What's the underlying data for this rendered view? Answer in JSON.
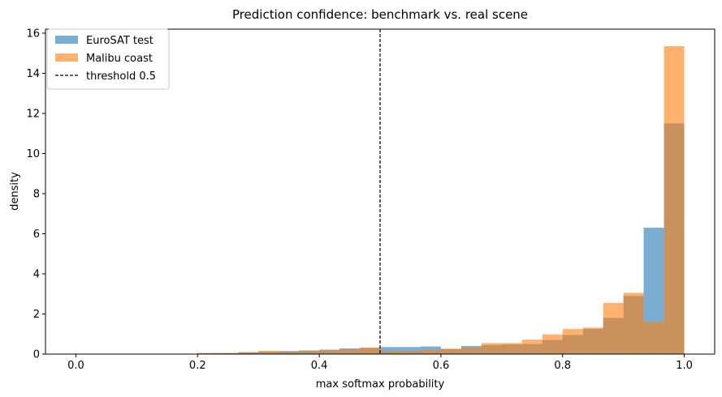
{
  "chart_data": {
    "type": "bar",
    "histogram": true,
    "title": "Prediction confidence: benchmark vs. real scene",
    "xlabel": "max softmax probability",
    "ylabel": "density",
    "xlim": [
      -0.05,
      1.05
    ],
    "ylim": [
      0,
      16.2
    ],
    "xticks": [
      0.0,
      0.2,
      0.4,
      0.6,
      0.8,
      1.0
    ],
    "xtick_labels": [
      "0.0",
      "0.2",
      "0.4",
      "0.6",
      "0.8",
      "1.0"
    ],
    "yticks": [
      0,
      2,
      4,
      6,
      8,
      10,
      12,
      14,
      16
    ],
    "ytick_labels": [
      "0",
      "2",
      "4",
      "6",
      "8",
      "10",
      "12",
      "14",
      "16"
    ],
    "bin_edges": [
      0.2,
      0.2333,
      0.2667,
      0.3,
      0.3333,
      0.3667,
      0.4,
      0.4333,
      0.4667,
      0.5,
      0.5333,
      0.5667,
      0.6,
      0.6333,
      0.6667,
      0.7,
      0.7333,
      0.7667,
      0.8,
      0.8333,
      0.8667,
      0.9,
      0.9333,
      0.9667,
      1.0
    ],
    "series": [
      {
        "name": "EuroSAT test",
        "color": "#1f77b4",
        "alpha": 0.6,
        "values": [
          0.03,
          0.04,
          0.08,
          0.12,
          0.15,
          0.18,
          0.22,
          0.28,
          0.3,
          0.35,
          0.35,
          0.38,
          0.25,
          0.4,
          0.45,
          0.48,
          0.5,
          0.7,
          0.95,
          1.25,
          1.8,
          2.9,
          6.3,
          11.5
        ]
      },
      {
        "name": "Malibu coast",
        "color": "#ff7f0e",
        "alpha": 0.6,
        "values": [
          0.06,
          0.06,
          0.1,
          0.16,
          0.12,
          0.15,
          0.18,
          0.24,
          0.33,
          0.14,
          0.15,
          0.2,
          0.27,
          0.32,
          0.55,
          0.55,
          0.72,
          0.98,
          1.25,
          1.32,
          2.55,
          3.05,
          1.6,
          15.35
        ]
      }
    ],
    "threshold": {
      "x": 0.5,
      "label": "threshold 0.5",
      "color": "#000000",
      "style": "dashed"
    },
    "legend": {
      "placement": "top-left",
      "entries": [
        "EuroSAT test",
        "Malibu coast",
        "threshold 0.5"
      ]
    },
    "grid": false
  }
}
